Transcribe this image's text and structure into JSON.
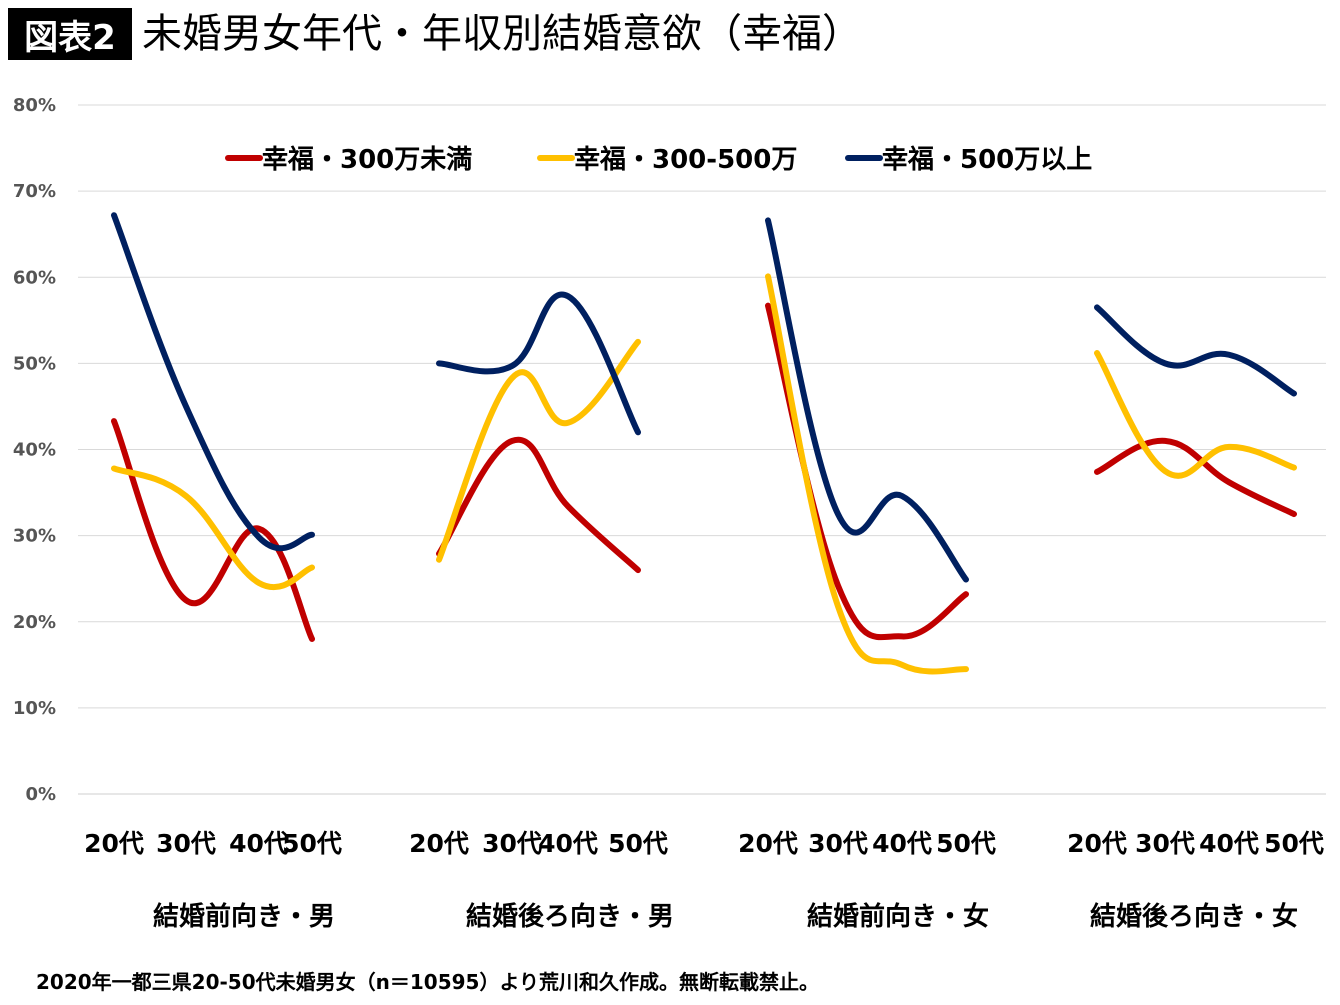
{
  "header": {
    "badge": "図表2",
    "title": "未婚男女年代・年収別結婚意欲（幸福）"
  },
  "footer": {
    "note": "2020年一都三県20-50代未婚男女（n＝10595）より荒川和久作成。無断転載禁止。"
  },
  "chart_data": {
    "type": "line",
    "y_ticks": [
      "0%",
      "10%",
      "20%",
      "30%",
      "40%",
      "50%",
      "60%",
      "70%",
      "80%"
    ],
    "ylim": [
      0,
      80
    ],
    "grid": true,
    "legend_position": "top",
    "categories": [
      "20代",
      "30代",
      "40代",
      "50代"
    ],
    "groups": [
      "結婚前向き・男",
      "結婚後ろ向き・男",
      "結婚前向き・女",
      "結婚後ろ向き・女"
    ],
    "series": [
      {
        "name": "幸福・300万未満",
        "color": "#C00000",
        "values": [
          [
            43.3,
            22.5,
            30.8,
            18.0
          ],
          [
            27.9,
            41.0,
            33.4,
            26.0
          ],
          [
            56.7,
            24.2,
            18.3,
            23.2
          ],
          [
            37.4,
            41.0,
            36.2,
            32.5
          ]
        ]
      },
      {
        "name": "幸福・300-500万",
        "color": "#FFC000",
        "values": [
          [
            37.8,
            34.6,
            24.5,
            26.3
          ],
          [
            27.2,
            48.3,
            43.1,
            52.5
          ],
          [
            60.1,
            21.8,
            15.0,
            14.5
          ],
          [
            51.2,
            37.5,
            40.3,
            37.9
          ]
        ]
      },
      {
        "name": "幸福・500万以上",
        "color": "#002060",
        "values": [
          [
            67.2,
            45.0,
            29.8,
            30.1
          ],
          [
            50.0,
            49.7,
            57.8,
            42.0
          ],
          [
            66.6,
            32.5,
            34.6,
            24.9
          ],
          [
            56.5,
            50.0,
            51.0,
            46.5
          ]
        ]
      }
    ]
  }
}
